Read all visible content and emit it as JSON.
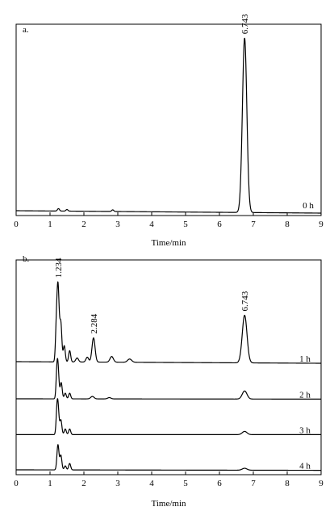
{
  "chart_data": [
    {
      "type": "line",
      "panel_label": "a.",
      "xlabel": "Time/min",
      "xlim": [
        0,
        9
      ],
      "x_ticks": [
        0,
        1,
        2,
        3,
        4,
        5,
        6,
        7,
        8,
        9
      ],
      "y_ticks_shown": false,
      "grid": false,
      "legend": "none",
      "series": [
        {
          "name": "0 h",
          "baseline_start": 0.3,
          "baseline_end": 0.15,
          "peaks": [
            {
              "t": 1.25,
              "h": 0.15,
              "w": 0.03
            },
            {
              "t": 1.5,
              "h": 0.1,
              "w": 0.03
            },
            {
              "t": 2.85,
              "h": 0.1,
              "w": 0.03
            },
            {
              "t": 6.743,
              "h": 10.8,
              "w": 0.065
            }
          ]
        }
      ],
      "peak_labels": [
        {
          "x": 6.743,
          "text": "6.743"
        }
      ]
    },
    {
      "type": "line",
      "panel_label": "b.",
      "xlabel": "Time/min",
      "xlim": [
        0,
        9
      ],
      "x_ticks": [
        0,
        1,
        2,
        3,
        4,
        5,
        6,
        7,
        8,
        9
      ],
      "y_ticks_shown": false,
      "grid": false,
      "legend": "none",
      "series": [
        {
          "name": "1 h",
          "offset": 3,
          "baseline_start": 0.15,
          "baseline_end": 0.05,
          "peaks": [
            {
              "t": 1.18,
              "h": 1.2,
              "w": 0.025
            },
            {
              "t": 1.234,
              "h": 4.8,
              "w": 0.035
            },
            {
              "t": 1.32,
              "h": 2.3,
              "w": 0.03
            },
            {
              "t": 1.42,
              "h": 1.0,
              "w": 0.03
            },
            {
              "t": 1.58,
              "h": 0.7,
              "w": 0.03
            },
            {
              "t": 1.8,
              "h": 0.25,
              "w": 0.04
            },
            {
              "t": 2.1,
              "h": 0.3,
              "w": 0.04
            },
            {
              "t": 2.284,
              "h": 1.5,
              "w": 0.045
            },
            {
              "t": 2.82,
              "h": 0.35,
              "w": 0.05
            },
            {
              "t": 3.35,
              "h": 0.2,
              "w": 0.06
            },
            {
              "t": 6.743,
              "h": 2.95,
              "w": 0.07
            }
          ]
        },
        {
          "name": "2 h",
          "offset": 2,
          "baseline_start": 0.05,
          "baseline_end": 0.03,
          "peaks": [
            {
              "t": 1.2,
              "h": 1.1,
              "w": 0.025
            },
            {
              "t": 1.234,
              "h": 1.9,
              "w": 0.03
            },
            {
              "t": 1.33,
              "h": 1.0,
              "w": 0.03
            },
            {
              "t": 1.45,
              "h": 0.35,
              "w": 0.03
            },
            {
              "t": 1.58,
              "h": 0.35,
              "w": 0.03
            },
            {
              "t": 2.25,
              "h": 0.15,
              "w": 0.05
            },
            {
              "t": 2.75,
              "h": 0.08,
              "w": 0.05
            },
            {
              "t": 6.743,
              "h": 0.5,
              "w": 0.07
            }
          ]
        },
        {
          "name": "3 h",
          "offset": 1,
          "baseline_start": 0.03,
          "baseline_end": 0.03,
          "peaks": [
            {
              "t": 1.2,
              "h": 0.9,
              "w": 0.025
            },
            {
              "t": 1.234,
              "h": 1.75,
              "w": 0.03
            },
            {
              "t": 1.32,
              "h": 0.9,
              "w": 0.03
            },
            {
              "t": 1.45,
              "h": 0.35,
              "w": 0.03
            },
            {
              "t": 1.58,
              "h": 0.35,
              "w": 0.03
            },
            {
              "t": 6.743,
              "h": 0.2,
              "w": 0.07
            }
          ]
        },
        {
          "name": "4 h",
          "offset": 0,
          "baseline_start": 0.05,
          "baseline_end": 0.02,
          "peaks": [
            {
              "t": 1.234,
              "h": 1.55,
              "w": 0.03
            },
            {
              "t": 1.32,
              "h": 0.9,
              "w": 0.03
            },
            {
              "t": 1.45,
              "h": 0.25,
              "w": 0.03
            },
            {
              "t": 1.58,
              "h": 0.4,
              "w": 0.03
            },
            {
              "t": 6.743,
              "h": 0.12,
              "w": 0.07
            }
          ]
        }
      ],
      "peak_labels": [
        {
          "x": 1.234,
          "text": "1.234"
        },
        {
          "x": 2.284,
          "text": "2.284"
        },
        {
          "x": 6.743,
          "text": "6.743"
        }
      ]
    }
  ]
}
